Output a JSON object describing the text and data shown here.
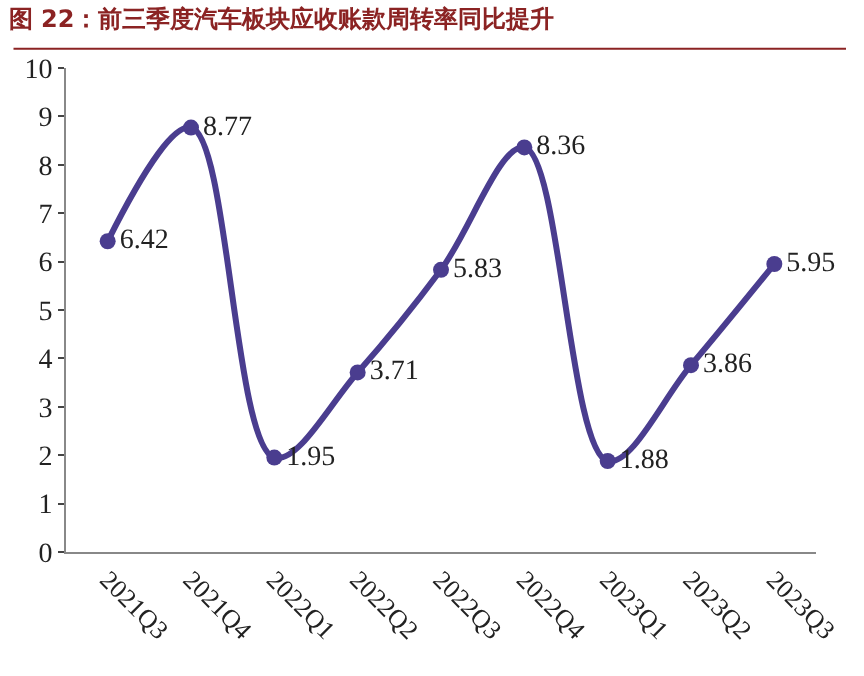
{
  "chart_data": {
    "type": "line",
    "title": "图 22：前三季度汽车板块应收账款周转率同比提升",
    "categories": [
      "2021Q3",
      "2021Q4",
      "2022Q1",
      "2022Q2",
      "2022Q3",
      "2022Q4",
      "2023Q1",
      "2023Q2",
      "2023Q3"
    ],
    "series": [
      {
        "color": "#4a3d8f",
        "values": [
          6.42,
          8.77,
          1.95,
          3.71,
          5.83,
          8.36,
          1.88,
          3.86,
          5.95
        ]
      }
    ],
    "ylim": [
      0,
      10
    ],
    "yticks": [
      0,
      1,
      2,
      3,
      4,
      5,
      6,
      7,
      8,
      9,
      10
    ],
    "marker": "circle",
    "line_style": "solid",
    "data_labels": true
  }
}
